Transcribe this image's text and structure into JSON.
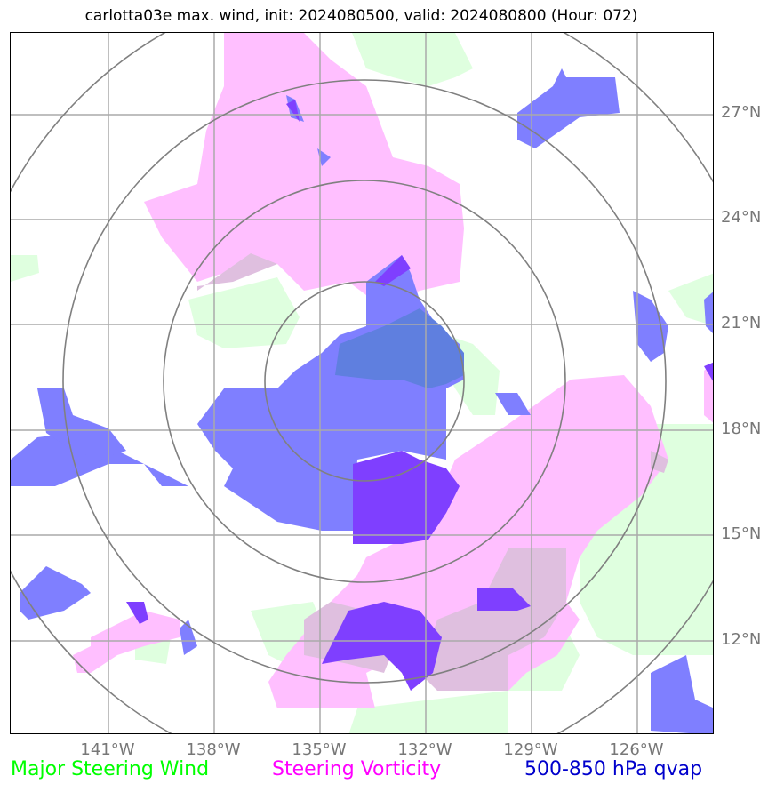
{
  "title": "carlotta03e max. wind, init: 2024080500, valid: 2024080800 (Hour: 072)",
  "lat_labels": [
    "27°N",
    "24°N",
    "21°N",
    "18°N",
    "15°N",
    "12°N"
  ],
  "lon_labels": [
    "141°W",
    "138°W",
    "135°W",
    "132°W",
    "129°W",
    "126°W"
  ],
  "legend": {
    "wind": {
      "label": "Major Steering Wind",
      "color": "#00ff00"
    },
    "vorticity": {
      "label": "Steering Vorticity",
      "color": "#ff00ff"
    },
    "qvap": {
      "label": "500-850 hPa qvap",
      "color": "#0000cc"
    }
  },
  "fill_colors": {
    "wind": "#dfffdf",
    "vorticity": "#ffbfff",
    "vorticity_overlap": "#dfbfdf",
    "qvap": "#7f7fff",
    "qvap_strong": "#7f3fff",
    "qvap_wind_overlap": "#5f7fdf"
  },
  "range_rings": 4
}
